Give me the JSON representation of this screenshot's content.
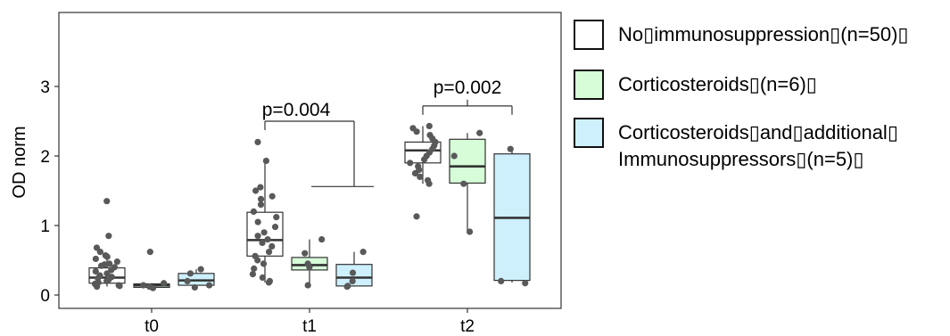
{
  "chart_data": {
    "type": "boxplot",
    "title": "",
    "xlabel": "",
    "ylabel": "OD norm",
    "categories": [
      "t0",
      "t1",
      "t2"
    ],
    "yticks": [
      0,
      1,
      2,
      3
    ],
    "ylim": [
      -0.15,
      4.1
    ],
    "grid": false,
    "legend_position": "right",
    "series": [
      {
        "name": "No▯immunosuppression▯(n=50)▯",
        "color": "#ffffff",
        "boxes": [
          {
            "category": "t0",
            "lower": 0.12,
            "q1": 0.17,
            "median": 0.25,
            "q3": 0.39,
            "upper": 0.55
          },
          {
            "category": "t1",
            "lower": 0.18,
            "q1": 0.56,
            "median": 0.79,
            "q3": 1.19,
            "upper": 1.93
          },
          {
            "category": "t2",
            "lower": 1.6,
            "q1": 1.9,
            "median": 2.08,
            "q3": 2.2,
            "upper": 2.43
          }
        ]
      },
      {
        "name": "Corticosteroids▯(n=6)▯",
        "color": "#d6fcd8",
        "boxes": [
          {
            "category": "t0",
            "lower": 0.1,
            "q1": 0.11,
            "median": 0.14,
            "q3": 0.16,
            "upper": 0.17
          },
          {
            "category": "t1",
            "lower": 0.14,
            "q1": 0.36,
            "median": 0.43,
            "q3": 0.54,
            "upper": 0.8
          },
          {
            "category": "t2",
            "lower": 0.91,
            "q1": 1.61,
            "median": 1.85,
            "q3": 2.24,
            "upper": 2.33
          }
        ]
      },
      {
        "name": "Corticosteroids▯and▯additional▯\nImmunosuppressors▯(n=5)▯",
        "color": "#cdf0fc",
        "boxes": [
          {
            "category": "t0",
            "lower": 0.11,
            "q1": 0.14,
            "median": 0.21,
            "q3": 0.31,
            "upper": 0.37
          },
          {
            "category": "t1",
            "lower": 0.12,
            "q1": 0.13,
            "median": 0.25,
            "q3": 0.44,
            "upper": 0.62
          },
          {
            "category": "t2",
            "lower": 0.18,
            "q1": 0.21,
            "median": 1.11,
            "q3": 2.03,
            "upper": 2.1
          }
        ]
      }
    ],
    "points": [
      {
        "category": "t0",
        "group": 0,
        "y": [
          1.35,
          0.85,
          0.68,
          0.62,
          0.57,
          0.55,
          0.52,
          0.48,
          0.45,
          0.44,
          0.42,
          0.4,
          0.36,
          0.34,
          0.31,
          0.28,
          0.26,
          0.24,
          0.22,
          0.2,
          0.18,
          0.16,
          0.14,
          0.13,
          0.12
        ]
      },
      {
        "category": "t0",
        "group": 1,
        "y": [
          0.62,
          0.17,
          0.14,
          0.12,
          0.1
        ]
      },
      {
        "category": "t0",
        "group": 2,
        "y": [
          0.37,
          0.31,
          0.2,
          0.14,
          0.11
        ]
      },
      {
        "category": "t1",
        "group": 0,
        "y": [
          2.2,
          1.93,
          1.55,
          1.5,
          1.42,
          1.38,
          1.3,
          1.2,
          1.12,
          1.05,
          0.98,
          0.9,
          0.85,
          0.8,
          0.75,
          0.7,
          0.62,
          0.56,
          0.5,
          0.45,
          0.38,
          0.3,
          0.25,
          0.2,
          0.18
        ]
      },
      {
        "category": "t1",
        "group": 1,
        "y": [
          0.8,
          0.6,
          0.45,
          0.4,
          0.14
        ]
      },
      {
        "category": "t1",
        "group": 2,
        "y": [
          0.62,
          0.32,
          0.2,
          0.13,
          0.12
        ]
      },
      {
        "category": "t2",
        "group": 0,
        "y": [
          2.43,
          2.4,
          2.35,
          2.3,
          2.25,
          2.2,
          2.15,
          2.1,
          2.05,
          2.0,
          1.95,
          1.9,
          1.85,
          1.8,
          1.75,
          1.7,
          1.65,
          1.6,
          1.13
        ]
      },
      {
        "category": "t2",
        "group": 1,
        "y": [
          2.33,
          2.0,
          1.6,
          0.91
        ]
      },
      {
        "category": "t2",
        "group": 2,
        "y": [
          2.1,
          0.2,
          0.17
        ]
      }
    ],
    "annotations": [
      {
        "label": "p=0.004",
        "category": "t1",
        "y_label": 2.58,
        "y_bracket": 2.5,
        "left_group": 0,
        "right_group": 2,
        "right_drop_y": 1.56
      },
      {
        "label": "p=0.002",
        "category": "t2",
        "y_label": 2.9,
        "y_bracket": 2.72,
        "left_group": 0,
        "right_group": 2
      }
    ]
  }
}
